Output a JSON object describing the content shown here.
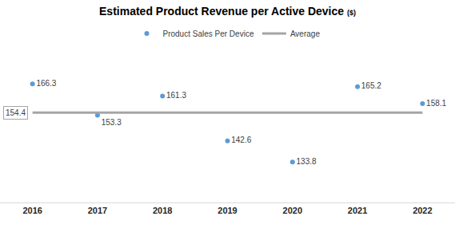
{
  "chart_data": {
    "type": "scatter",
    "title": "Estimated Product Revenue per Active Device",
    "subtitle": "($)",
    "categories": [
      "2016",
      "2017",
      "2018",
      "2019",
      "2020",
      "2021",
      "2022"
    ],
    "series": [
      {
        "name": "Product Sales Per Device",
        "type": "scatter",
        "marker": "circle",
        "color": "#5B9BD5",
        "values": [
          166.3,
          153.3,
          161.3,
          142.6,
          133.8,
          165.2,
          158.1
        ]
      },
      {
        "name": "Average",
        "type": "line",
        "line_style": "solid",
        "color": "#A5A5A5",
        "values": [
          154.4,
          154.4,
          154.4,
          154.4,
          154.4,
          154.4,
          154.4
        ]
      }
    ],
    "ylim": [
      117,
      182
    ],
    "data_labels": true,
    "tick_labels": "x",
    "grid": false,
    "legend": "top"
  }
}
